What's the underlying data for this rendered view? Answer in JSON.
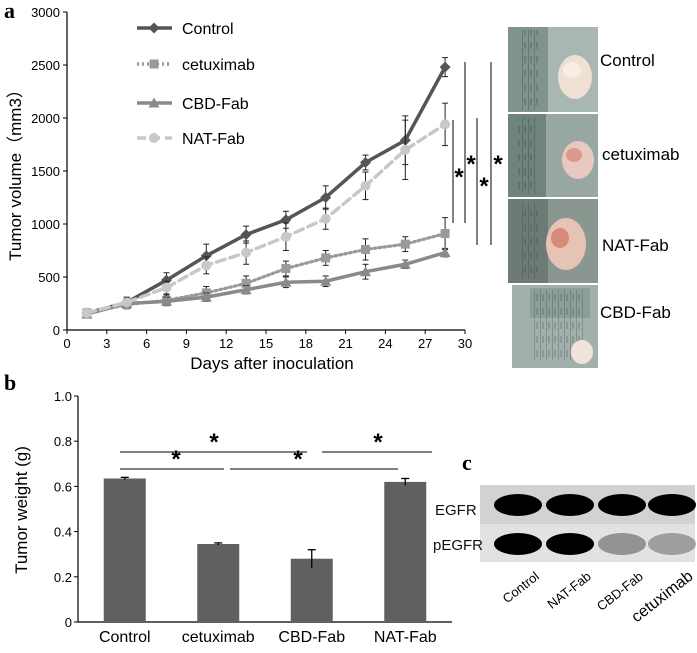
{
  "panel_labels": {
    "a": "a",
    "b": "b",
    "c": "c"
  },
  "significance_mark": "*",
  "chart_data": [
    {
      "type": "line",
      "xlabel": "Days after inoculation",
      "ylabel": "Tumor volume（mm3）",
      "xlim": [
        0,
        30
      ],
      "ylim": [
        0,
        3000
      ],
      "xticks": [
        0,
        3,
        6,
        9,
        12,
        15,
        18,
        21,
        24,
        27,
        30
      ],
      "yticks": [
        0,
        500,
        1000,
        1500,
        2000,
        2500,
        3000
      ],
      "x": [
        1.5,
        4.5,
        7.5,
        10.5,
        13.5,
        16.5,
        19.5,
        22.5,
        25.5,
        28.5
      ],
      "legend_position": "top-left",
      "series": [
        {
          "name": "Control",
          "color": "#555555",
          "style": "solid",
          "marker": "diamond",
          "values": [
            160,
            260,
            470,
            700,
            900,
            1040,
            1250,
            1580,
            1790,
            2480
          ],
          "errors": [
            40,
            50,
            70,
            110,
            80,
            80,
            110,
            70,
            230,
            90
          ]
        },
        {
          "name": "cetuximab",
          "color": "#9a9a9a",
          "style": "dotted",
          "marker": "square",
          "values": [
            160,
            240,
            280,
            350,
            440,
            580,
            680,
            760,
            810,
            910
          ],
          "errors": [
            30,
            40,
            50,
            60,
            70,
            70,
            70,
            100,
            70,
            150
          ]
        },
        {
          "name": "CBD-Fab",
          "color": "#8a8a8a",
          "style": "solid",
          "marker": "triangle",
          "values": [
            150,
            250,
            270,
            310,
            380,
            450,
            460,
            550,
            620,
            730
          ],
          "errors": [
            30,
            30,
            40,
            40,
            40,
            50,
            50,
            70,
            40,
            40
          ]
        },
        {
          "name": "NAT-Fab",
          "color": "#c8c8c8",
          "style": "dashed",
          "marker": "circle",
          "values": [
            160,
            260,
            400,
            610,
            730,
            880,
            1050,
            1360,
            1700,
            1940
          ],
          "errors": [
            30,
            40,
            60,
            80,
            110,
            130,
            100,
            130,
            280,
            200
          ]
        }
      ]
    },
    {
      "type": "bar",
      "ylabel": "Tumor weight (g)",
      "categories": [
        "Control",
        "cetuximab",
        "CBD-Fab",
        "NAT-Fab"
      ],
      "values": [
        0.635,
        0.345,
        0.28,
        0.62
      ],
      "errors": [
        0.005,
        0.005,
        0.04,
        0.015
      ],
      "ylim": [
        0,
        1.0
      ],
      "yticks": [
        "0",
        "0.2",
        "0.4",
        "0.6",
        "0.8",
        "1.0"
      ],
      "color": "#606060"
    }
  ],
  "photos": {
    "labels": [
      "Control",
      "cetuximab",
      "NAT-Fab",
      "CBD-Fab"
    ]
  },
  "blot": {
    "rows": [
      "EGFR",
      "pEGFR"
    ],
    "lanes": [
      "Control",
      "NAT-Fab",
      "CBD-Fab",
      "cetuximab"
    ],
    "intensity": {
      "EGFR": [
        1.0,
        1.0,
        1.0,
        1.0
      ],
      "pEGFR": [
        1.0,
        1.0,
        0.35,
        0.3
      ]
    }
  }
}
